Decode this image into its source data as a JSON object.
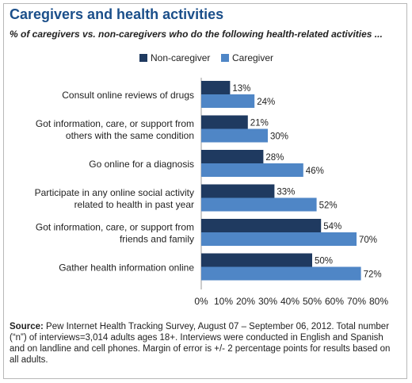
{
  "title": "Caregivers and health activities",
  "subtitle": "% of caregivers vs. non-caregivers who do the following health-related activities ...",
  "colors": {
    "non_caregiver": "#1f3a60",
    "caregiver": "#4f86c6",
    "title": "#1b4f8a"
  },
  "source": {
    "label": "Source:",
    "text": "Pew Internet Health Tracking Survey, August 07 – September 06, 2012. Total number (“n”) of interviews=3,014 adults ages 18+. Interviews were conducted in English and Spanish and on landline and cell phones.  Margin of error is +/- 2 percentage points for results based on all adults."
  },
  "chart_data": {
    "type": "bar",
    "orientation": "horizontal",
    "categories": [
      [
        "Consult online reviews of drugs"
      ],
      [
        "Got information, care, or support from",
        "others with the same condition"
      ],
      [
        "Go online for a diagnosis"
      ],
      [
        "Participate in any online social activity",
        "related to health in past year"
      ],
      [
        "Got information, care, or support from",
        "friends and family"
      ],
      [
        "Gather health information online"
      ]
    ],
    "series": [
      {
        "name": "Non-caregiver",
        "values": [
          13,
          21,
          28,
          33,
          54,
          50
        ]
      },
      {
        "name": "Caregiver",
        "values": [
          24,
          30,
          46,
          52,
          70,
          72
        ]
      }
    ],
    "xlim": [
      0,
      80
    ],
    "xticks": [
      "0%",
      "10%",
      "20%",
      "30%",
      "40%",
      "50%",
      "60%",
      "70%",
      "80%"
    ],
    "value_suffix": "%",
    "legend_position": "top"
  }
}
